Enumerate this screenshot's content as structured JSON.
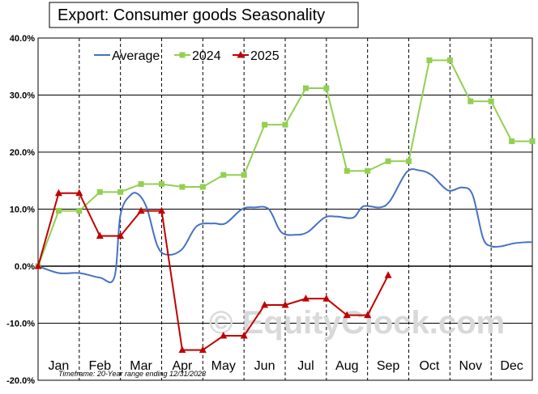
{
  "chart_data": {
    "type": "line",
    "title": "Export: Consumer goods Seasonality",
    "footnote": "Timeframe: 20-Year range ending 12/31/2023",
    "watermark": "© EquityClock.com",
    "x_tick_labels": [
      "Jan",
      "Feb",
      "Mar",
      "Apr",
      "May",
      "Jun",
      "Jul",
      "Aug",
      "Sep",
      "Oct",
      "Nov",
      "Dec"
    ],
    "y_tick_labels": [
      "40.0%",
      "30.0%",
      "20.0%",
      "10.0%",
      "0.0%",
      "-10.0%",
      "-20.0%"
    ],
    "ylim": [
      -20,
      40
    ],
    "xlim": [
      0,
      12
    ],
    "grid": true,
    "legend_position": "top-left",
    "series": [
      {
        "name": "Average",
        "color": "#4472c4",
        "marker": "none",
        "x": [
          0,
          0.5,
          1.0,
          1.5,
          1.85,
          2.0,
          2.25,
          2.45,
          2.65,
          2.9,
          3.15,
          3.5,
          3.85,
          4.25,
          4.55,
          4.95,
          5.25,
          5.6,
          5.9,
          6.25,
          6.55,
          6.95,
          7.25,
          7.65,
          7.9,
          8.3,
          8.55,
          8.95,
          9.25,
          9.55,
          9.95,
          10.3,
          10.55,
          10.8,
          11.0,
          11.25,
          11.55,
          11.85,
          12.0
        ],
        "values": [
          0,
          -1.2,
          -1.2,
          -2.0,
          -2.0,
          9.0,
          12.5,
          12.5,
          10.0,
          3.5,
          2.0,
          3.0,
          7.0,
          7.5,
          7.5,
          10.0,
          10.3,
          10.0,
          6.0,
          5.5,
          6.0,
          8.5,
          8.7,
          8.5,
          10.5,
          10.3,
          11.5,
          16.5,
          16.8,
          16.0,
          13.3,
          13.8,
          12.5,
          5.0,
          3.5,
          3.5,
          4.0,
          4.2,
          4.2
        ]
      },
      {
        "name": "2024",
        "color": "#92d050",
        "marker": "square",
        "x": [
          0,
          0.5,
          1.0,
          1.5,
          2.0,
          2.5,
          3.0,
          3.5,
          4.0,
          4.5,
          5.0,
          5.5,
          6.0,
          6.5,
          7.0,
          7.5,
          8.0,
          8.5,
          9.0,
          9.5,
          10.0,
          10.5,
          11.0,
          11.5,
          12.0
        ],
        "values": [
          0,
          9.7,
          9.7,
          13.0,
          13.0,
          14.4,
          14.4,
          13.9,
          13.9,
          16.0,
          16.0,
          24.8,
          24.8,
          31.2,
          31.2,
          16.7,
          16.7,
          18.4,
          18.4,
          36.1,
          36.1,
          28.9,
          28.9,
          21.9,
          21.9
        ]
      },
      {
        "name": "2025",
        "color": "#c00000",
        "marker": "triangle",
        "x": [
          0,
          0.5,
          1.0,
          1.5,
          2.0,
          2.5,
          3.0,
          3.5,
          4.0,
          4.5,
          5.0,
          5.5,
          6.0,
          6.5,
          7.0,
          7.5,
          8.0,
          8.5
        ],
        "values": [
          0,
          12.8,
          12.8,
          5.3,
          5.3,
          9.7,
          9.7,
          -14.7,
          -14.7,
          -12.2,
          -12.2,
          -6.8,
          -6.8,
          -5.7,
          -5.7,
          -8.6,
          -8.6,
          -1.6
        ]
      }
    ]
  }
}
